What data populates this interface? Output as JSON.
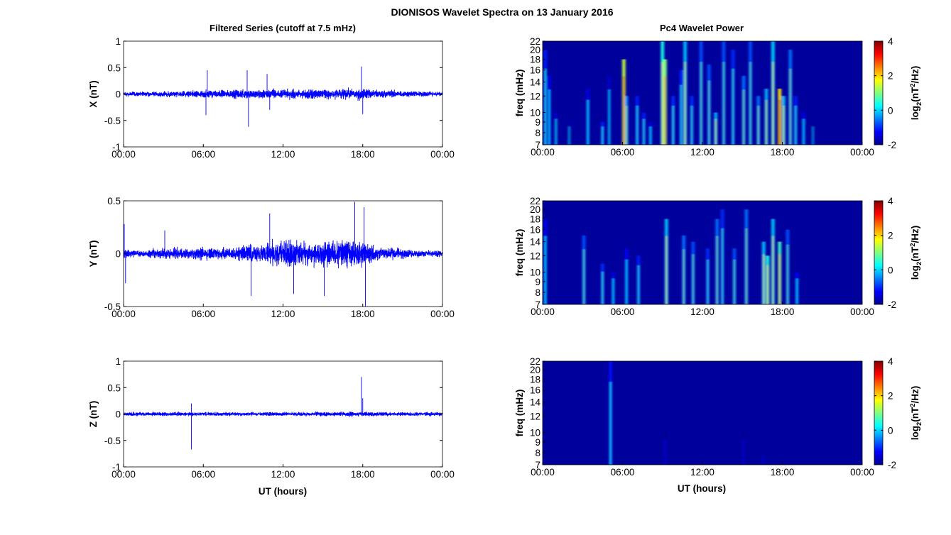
{
  "figure": {
    "title": "DIONISOS Wavelet Spectra on 13 January 2016",
    "left_title": "Filtered Series (cutoff at 7.5 mHz)",
    "right_title": "Pc4 Wavelet Power",
    "xlabel": "UT (hours)",
    "colorbar_label_main": "log",
    "colorbar_label_sub": "2",
    "colorbar_label_paren": "(nT",
    "colorbar_label_sup": "2",
    "colorbar_label_tail": "/Hz)"
  },
  "colors": {
    "series": "#0000ff",
    "spectrum_background": "#00009c",
    "colormap": [
      "#00008f",
      "#0000ff",
      "#0080ff",
      "#00ffff",
      "#80ff80",
      "#ffff00",
      "#ff8000",
      "#ff0000",
      "#800000"
    ]
  },
  "chart_data": [
    {
      "type": "line",
      "panel": "X",
      "ylabel": "X (nT)",
      "ylim": [
        -1,
        1
      ],
      "yticks": [
        "1",
        "0.5",
        "0",
        "-0.5",
        "-1"
      ],
      "yticks_values": [
        1,
        0.5,
        0,
        -0.5,
        -1
      ],
      "xlim_hours": [
        0,
        24
      ],
      "xticks": [
        "00:00",
        "06:00",
        "12:00",
        "18:00",
        "00:00"
      ],
      "x_hours": [
        0,
        1,
        2,
        3,
        4,
        5,
        6,
        7,
        8,
        9,
        10,
        11,
        12,
        13,
        14,
        15,
        16,
        17,
        18,
        19,
        20,
        21,
        22,
        23,
        24
      ],
      "envelope_amplitude": [
        0.07,
        0.07,
        0.07,
        0.08,
        0.09,
        0.1,
        0.13,
        0.12,
        0.12,
        0.15,
        0.15,
        0.15,
        0.14,
        0.14,
        0.15,
        0.15,
        0.16,
        0.16,
        0.17,
        0.14,
        0.12,
        0.1,
        0.09,
        0.08,
        0.07
      ],
      "spikes": [
        {
          "x": 6.3,
          "y": 0.45
        },
        {
          "x": 6.2,
          "y": -0.4
        },
        {
          "x": 9.3,
          "y": 0.45
        },
        {
          "x": 9.4,
          "y": -0.62
        },
        {
          "x": 10.8,
          "y": 0.38
        },
        {
          "x": 11.0,
          "y": -0.3
        },
        {
          "x": 17.9,
          "y": 0.52
        },
        {
          "x": 18.0,
          "y": -0.38
        }
      ]
    },
    {
      "type": "line",
      "panel": "Y",
      "ylabel": "Y (nT)",
      "ylim": [
        -0.5,
        0.5
      ],
      "yticks": [
        "0.5",
        "0",
        "-0.5"
      ],
      "yticks_values": [
        0.5,
        0,
        -0.5
      ],
      "xlim_hours": [
        0,
        24
      ],
      "xticks": [
        "00:00",
        "06:00",
        "12:00",
        "18:00",
        "00:00"
      ],
      "x_hours": [
        0,
        1,
        2,
        3,
        4,
        5,
        6,
        7,
        8,
        9,
        10,
        11,
        12,
        13,
        14,
        15,
        16,
        17,
        18,
        19,
        20,
        21,
        22,
        23,
        24
      ],
      "envelope_amplitude": [
        0.08,
        0.05,
        0.06,
        0.08,
        0.08,
        0.08,
        0.09,
        0.1,
        0.1,
        0.12,
        0.14,
        0.18,
        0.2,
        0.2,
        0.18,
        0.18,
        0.2,
        0.22,
        0.18,
        0.12,
        0.09,
        0.07,
        0.06,
        0.05,
        0.05
      ],
      "spikes": [
        {
          "x": 0.05,
          "y": 0.28
        },
        {
          "x": 0.15,
          "y": -0.28
        },
        {
          "x": 3.1,
          "y": 0.22
        },
        {
          "x": 9.6,
          "y": -0.4
        },
        {
          "x": 11.0,
          "y": 0.38
        },
        {
          "x": 12.8,
          "y": -0.38
        },
        {
          "x": 15.1,
          "y": -0.4
        },
        {
          "x": 17.4,
          "y": 0.49
        },
        {
          "x": 18.1,
          "y": 0.44
        },
        {
          "x": 18.2,
          "y": -0.5
        }
      ]
    },
    {
      "type": "line",
      "panel": "Z",
      "ylabel": "Z (nT)",
      "ylim": [
        -1,
        1
      ],
      "yticks": [
        "1",
        "0.5",
        "0",
        "-0.5",
        "-1"
      ],
      "yticks_values": [
        1,
        0.5,
        0,
        -0.5,
        -1
      ],
      "xlim_hours": [
        0,
        24
      ],
      "xticks": [
        "00:00",
        "06:00",
        "12:00",
        "18:00",
        "00:00"
      ],
      "xlabel": "UT (hours)",
      "x_hours": [
        0,
        1,
        2,
        3,
        4,
        5,
        6,
        7,
        8,
        9,
        10,
        11,
        12,
        13,
        14,
        15,
        16,
        17,
        18,
        19,
        20,
        21,
        22,
        23,
        24
      ],
      "envelope_amplitude": [
        0.06,
        0.06,
        0.06,
        0.06,
        0.06,
        0.06,
        0.06,
        0.06,
        0.06,
        0.06,
        0.06,
        0.06,
        0.06,
        0.06,
        0.06,
        0.07,
        0.07,
        0.08,
        0.08,
        0.07,
        0.06,
        0.06,
        0.06,
        0.06,
        0.06
      ],
      "spikes": [
        {
          "x": 5.1,
          "y": -0.67
        },
        {
          "x": 5.1,
          "y": 0.2
        },
        {
          "x": 17.9,
          "y": 0.7
        },
        {
          "x": 18.0,
          "y": 0.3
        }
      ]
    },
    {
      "type": "heatmap",
      "panel": "X",
      "ylabel": "freq (mHz)",
      "ylim_mhz": [
        7,
        22
      ],
      "yscale": "log",
      "yticks": [
        "22",
        "20",
        "18",
        "16",
        "14",
        "12",
        "10",
        "9",
        "8",
        "7"
      ],
      "yticks_values": [
        22,
        20,
        18,
        16,
        14,
        12,
        10,
        9,
        8,
        7
      ],
      "xlim_hours": [
        0,
        24
      ],
      "xticks": [
        "00:00",
        "06:00",
        "12:00",
        "18:00",
        "00:00"
      ],
      "colorbar_range": [
        -2,
        4
      ],
      "colorbar_ticks": [
        "4",
        "2",
        "0",
        "-2"
      ],
      "colorbar_ticks_values": [
        4,
        2,
        0,
        -2
      ],
      "bursts": [
        {
          "t": 0.2,
          "fmax": 20,
          "p": 0.5
        },
        {
          "t": 0.5,
          "fmax": 15,
          "p": 0.2
        },
        {
          "t": 1.0,
          "fmax": 10,
          "p": 0.0
        },
        {
          "t": 2.0,
          "fmax": 9,
          "p": -0.2
        },
        {
          "t": 3.4,
          "fmax": 13,
          "p": 0.2
        },
        {
          "t": 4.5,
          "fmax": 9,
          "p": 0.5
        },
        {
          "t": 5.0,
          "fmax": 15,
          "p": 0.0
        },
        {
          "t": 6.1,
          "fmax": 18,
          "p": 3.0
        },
        {
          "t": 6.3,
          "fmax": 12,
          "p": 1.2
        },
        {
          "t": 7.1,
          "fmax": 12,
          "p": 0.5
        },
        {
          "t": 7.6,
          "fmax": 10,
          "p": 0.5
        },
        {
          "t": 8.1,
          "fmax": 9,
          "p": 0.2
        },
        {
          "t": 9.0,
          "fmax": 22,
          "p": 2.0
        },
        {
          "t": 9.2,
          "fmax": 18,
          "p": 2.6
        },
        {
          "t": 9.8,
          "fmax": 12,
          "p": 0.6
        },
        {
          "t": 10.4,
          "fmax": 16,
          "p": 0.5
        },
        {
          "t": 10.7,
          "fmax": 22,
          "p": 1.5
        },
        {
          "t": 11.2,
          "fmax": 12,
          "p": 0.6
        },
        {
          "t": 11.9,
          "fmax": 22,
          "p": 0.8
        },
        {
          "t": 12.5,
          "fmax": 17,
          "p": 0.8
        },
        {
          "t": 13.0,
          "fmax": 10,
          "p": 1.4
        },
        {
          "t": 13.6,
          "fmax": 22,
          "p": 0.8
        },
        {
          "t": 14.3,
          "fmax": 20,
          "p": 0.6
        },
        {
          "t": 15.1,
          "fmax": 15,
          "p": 1.0
        },
        {
          "t": 15.6,
          "fmax": 22,
          "p": 0.8
        },
        {
          "t": 16.2,
          "fmax": 12,
          "p": 1.0
        },
        {
          "t": 16.8,
          "fmax": 13,
          "p": 1.4
        },
        {
          "t": 17.3,
          "fmax": 22,
          "p": 1.6
        },
        {
          "t": 17.8,
          "fmax": 13,
          "p": 3.5
        },
        {
          "t": 18.1,
          "fmax": 12,
          "p": 1.5
        },
        {
          "t": 18.6,
          "fmax": 20,
          "p": 1.0
        },
        {
          "t": 19.0,
          "fmax": 12,
          "p": 0.5
        },
        {
          "t": 19.6,
          "fmax": 10,
          "p": 0.2
        },
        {
          "t": 20.3,
          "fmax": 9,
          "p": -0.3
        }
      ]
    },
    {
      "type": "heatmap",
      "panel": "Y",
      "ylabel": "freq (mHz)",
      "ylim_mhz": [
        7,
        22
      ],
      "yscale": "log",
      "yticks": [
        "22",
        "20",
        "18",
        "16",
        "14",
        "12",
        "10",
        "9",
        "8",
        "7"
      ],
      "yticks_values": [
        22,
        20,
        18,
        16,
        14,
        12,
        10,
        9,
        8,
        7
      ],
      "xlim_hours": [
        0,
        24
      ],
      "xticks": [
        "00:00",
        "06:00",
        "12:00",
        "18:00",
        "00:00"
      ],
      "colorbar_range": [
        -2,
        4
      ],
      "colorbar_ticks": [
        "4",
        "2",
        "0",
        "-2"
      ],
      "colorbar_ticks_values": [
        4,
        2,
        0,
        -2
      ],
      "bursts": [
        {
          "t": 0.2,
          "fmax": 18,
          "p": 0.3
        },
        {
          "t": 3.1,
          "fmax": 15,
          "p": 0.8
        },
        {
          "t": 4.5,
          "fmax": 11,
          "p": 0.6
        },
        {
          "t": 5.3,
          "fmax": 10,
          "p": 0.2
        },
        {
          "t": 6.3,
          "fmax": 13,
          "p": 0.3
        },
        {
          "t": 7.2,
          "fmax": 12,
          "p": 0.5
        },
        {
          "t": 9.3,
          "fmax": 18,
          "p": 1.5
        },
        {
          "t": 10.6,
          "fmax": 15,
          "p": 1.0
        },
        {
          "t": 11.3,
          "fmax": 14,
          "p": 0.8
        },
        {
          "t": 12.4,
          "fmax": 13,
          "p": 0.6
        },
        {
          "t": 13.1,
          "fmax": 18,
          "p": 1.0
        },
        {
          "t": 13.5,
          "fmax": 20,
          "p": 0.6
        },
        {
          "t": 14.4,
          "fmax": 13,
          "p": 0.8
        },
        {
          "t": 15.3,
          "fmax": 20,
          "p": 1.0
        },
        {
          "t": 16.6,
          "fmax": 14,
          "p": 1.5
        },
        {
          "t": 16.9,
          "fmax": 12,
          "p": 2.0
        },
        {
          "t": 17.3,
          "fmax": 18,
          "p": 1.5
        },
        {
          "t": 17.8,
          "fmax": 14,
          "p": 2.2
        },
        {
          "t": 18.4,
          "fmax": 16,
          "p": 0.8
        },
        {
          "t": 19.1,
          "fmax": 10,
          "p": 0.3
        }
      ]
    },
    {
      "type": "heatmap",
      "panel": "Z",
      "ylabel": "freq (mHz)",
      "xlabel": "UT (hours)",
      "ylim_mhz": [
        7,
        22
      ],
      "yscale": "log",
      "yticks": [
        "22",
        "20",
        "18",
        "16",
        "14",
        "12",
        "10",
        "9",
        "8",
        "7"
      ],
      "yticks_values": [
        22,
        20,
        18,
        16,
        14,
        12,
        10,
        9,
        8,
        7
      ],
      "xlim_hours": [
        0,
        24
      ],
      "xticks": [
        "00:00",
        "06:00",
        "12:00",
        "18:00",
        "00:00"
      ],
      "colorbar_range": [
        -2,
        4
      ],
      "colorbar_ticks": [
        "4",
        "2",
        "0",
        "-2"
      ],
      "colorbar_ticks_values": [
        4,
        2,
        0,
        -2
      ],
      "bursts": [
        {
          "t": 5.1,
          "fmax": 22,
          "p": 0.4
        },
        {
          "t": 9.2,
          "fmax": 10,
          "p": -1.2
        },
        {
          "t": 15.1,
          "fmax": 10,
          "p": -1.3
        },
        {
          "t": 16.6,
          "fmax": 8,
          "p": -1.3
        }
      ]
    }
  ]
}
